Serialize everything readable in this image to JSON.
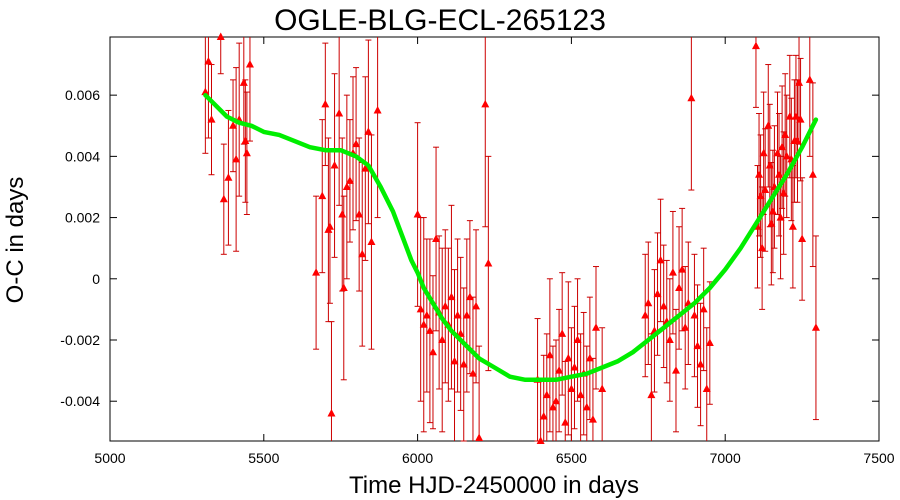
{
  "chart_data": {
    "type": "scatter",
    "title": "OGLE-BLG-ECL-265123",
    "xlabel": "Time HJD-2450000 in days",
    "ylabel": "O-C in days",
    "xlim": [
      5000,
      7500
    ],
    "ylim": [
      -0.0053,
      0.0079
    ],
    "x_ticks": [
      5000,
      5500,
      6000,
      6500,
      7000,
      7500
    ],
    "x_tick_labels": [
      "5000",
      "5500",
      "6000",
      "6500",
      "7000",
      "7500"
    ],
    "y_ticks": [
      -0.004,
      -0.002,
      0,
      0.002,
      0.004,
      0.006
    ],
    "y_tick_labels": [
      "-0.004",
      "-0.002",
      "0",
      "0.002",
      "0.004",
      "0.006"
    ],
    "grid": false,
    "legend": "none",
    "colors": {
      "points": "#ff0000",
      "errorbars": "#cc0000",
      "fit": "#00ee00",
      "axes": "#000000"
    },
    "series": [
      {
        "type": "scatter-errorbar",
        "points": [
          {
            "x": 5310,
            "y": 0.0061,
            "err": 0.002
          },
          {
            "x": 5320,
            "y": 0.0071,
            "err": 0.0025
          },
          {
            "x": 5330,
            "y": 0.0052,
            "err": 0.0018
          },
          {
            "x": 5360,
            "y": 0.0079,
            "err": 0.0012
          },
          {
            "x": 5370,
            "y": 0.0026,
            "err": 0.0018
          },
          {
            "x": 5385,
            "y": 0.0033,
            "err": 0.0022
          },
          {
            "x": 5400,
            "y": 0.005,
            "err": 0.0015
          },
          {
            "x": 5410,
            "y": 0.0039,
            "err": 0.003
          },
          {
            "x": 5420,
            "y": 0.0052,
            "err": 0.0025
          },
          {
            "x": 5435,
            "y": 0.0064,
            "err": 0.002
          },
          {
            "x": 5440,
            "y": 0.0045,
            "err": 0.002
          },
          {
            "x": 5445,
            "y": 0.0041,
            "err": 0.002
          },
          {
            "x": 5455,
            "y": 0.007,
            "err": 0.0025
          },
          {
            "x": 5670,
            "y": 0.0002,
            "err": 0.0025
          },
          {
            "x": 5690,
            "y": 0.0027,
            "err": 0.0025
          },
          {
            "x": 5700,
            "y": 0.0057,
            "err": 0.002
          },
          {
            "x": 5710,
            "y": 0.0016,
            "err": 0.003
          },
          {
            "x": 5715,
            "y": 0.0017,
            "err": 0.0025
          },
          {
            "x": 5720,
            "y": -0.0044,
            "err": 0.003
          },
          {
            "x": 5730,
            "y": 0.0037,
            "err": 0.003
          },
          {
            "x": 5745,
            "y": 0.0054,
            "err": 0.003
          },
          {
            "x": 5755,
            "y": 0.0021,
            "err": 0.0025
          },
          {
            "x": 5760,
            "y": -0.0003,
            "err": 0.003
          },
          {
            "x": 5770,
            "y": 0.003,
            "err": 0.003
          },
          {
            "x": 5780,
            "y": 0.0032,
            "err": 0.002
          },
          {
            "x": 5790,
            "y": 0.0041,
            "err": 0.0025
          },
          {
            "x": 5800,
            "y": 0.0044,
            "err": 0.0025
          },
          {
            "x": 5810,
            "y": 0.0021,
            "err": 0.0025
          },
          {
            "x": 5820,
            "y": 0.0008,
            "err": 0.003
          },
          {
            "x": 5830,
            "y": 0.0036,
            "err": 0.003
          },
          {
            "x": 5840,
            "y": 0.0048,
            "err": 0.003
          },
          {
            "x": 5850,
            "y": 0.0012,
            "err": 0.0035
          },
          {
            "x": 5870,
            "y": 0.0055,
            "err": 0.0035
          },
          {
            "x": 6000,
            "y": 0.0021,
            "err": 0.003
          },
          {
            "x": 6010,
            "y": -0.001,
            "err": 0.003
          },
          {
            "x": 6020,
            "y": -0.0015,
            "err": 0.0035
          },
          {
            "x": 6030,
            "y": -0.0012,
            "err": 0.0025
          },
          {
            "x": 6040,
            "y": -0.0017,
            "err": 0.003
          },
          {
            "x": 6050,
            "y": -0.0024,
            "err": 0.0025
          },
          {
            "x": 6060,
            "y": 0.0013,
            "err": 0.003
          },
          {
            "x": 6070,
            "y": -0.0011,
            "err": 0.0025
          },
          {
            "x": 6080,
            "y": -0.002,
            "err": 0.003
          },
          {
            "x": 6090,
            "y": -0.0009,
            "err": 0.0025
          },
          {
            "x": 6100,
            "y": -0.0015,
            "err": 0.0025
          },
          {
            "x": 6110,
            "y": -0.0006,
            "err": 0.003
          },
          {
            "x": 6120,
            "y": -0.0027,
            "err": 0.003
          },
          {
            "x": 6130,
            "y": -0.0012,
            "err": 0.0025
          },
          {
            "x": 6140,
            "y": -0.0018,
            "err": 0.0025
          },
          {
            "x": 6150,
            "y": -0.0028,
            "err": 0.0025
          },
          {
            "x": 6160,
            "y": -0.0012,
            "err": 0.0025
          },
          {
            "x": 6170,
            "y": -0.0006,
            "err": 0.0025
          },
          {
            "x": 6180,
            "y": -0.0031,
            "err": 0.0025
          },
          {
            "x": 6190,
            "y": -0.0009,
            "err": 0.0025
          },
          {
            "x": 6200,
            "y": -0.0052,
            "err": 0.003
          },
          {
            "x": 6220,
            "y": 0.0057,
            "err": 0.004
          },
          {
            "x": 6230,
            "y": 0.0005,
            "err": 0.0035
          },
          {
            "x": 6390,
            "y": -0.0033,
            "err": 0.002
          },
          {
            "x": 6400,
            "y": -0.0053,
            "err": 0.002
          },
          {
            "x": 6410,
            "y": -0.0045,
            "err": 0.002
          },
          {
            "x": 6420,
            "y": -0.0038,
            "err": 0.002
          },
          {
            "x": 6430,
            "y": -0.0025,
            "err": 0.0025
          },
          {
            "x": 6440,
            "y": -0.0042,
            "err": 0.002
          },
          {
            "x": 6450,
            "y": -0.004,
            "err": 0.002
          },
          {
            "x": 6460,
            "y": -0.003,
            "err": 0.002
          },
          {
            "x": 6470,
            "y": -0.0018,
            "err": 0.002
          },
          {
            "x": 6480,
            "y": -0.0047,
            "err": 0.002
          },
          {
            "x": 6490,
            "y": -0.0026,
            "err": 0.0025
          },
          {
            "x": 6500,
            "y": -0.0036,
            "err": 0.002
          },
          {
            "x": 6510,
            "y": -0.0029,
            "err": 0.002
          },
          {
            "x": 6520,
            "y": -0.002,
            "err": 0.002
          },
          {
            "x": 6530,
            "y": -0.0038,
            "err": 0.002
          },
          {
            "x": 6540,
            "y": -0.0031,
            "err": 0.002
          },
          {
            "x": 6550,
            "y": -0.0042,
            "err": 0.002
          },
          {
            "x": 6560,
            "y": -0.0026,
            "err": 0.002
          },
          {
            "x": 6570,
            "y": -0.0046,
            "err": 0.002
          },
          {
            "x": 6580,
            "y": -0.0016,
            "err": 0.002
          },
          {
            "x": 6600,
            "y": -0.0036,
            "err": 0.002
          },
          {
            "x": 6740,
            "y": -0.0012,
            "err": 0.002
          },
          {
            "x": 6750,
            "y": -0.0008,
            "err": 0.002
          },
          {
            "x": 6760,
            "y": -0.0038,
            "err": 0.002
          },
          {
            "x": 6770,
            "y": -0.0017,
            "err": 0.002
          },
          {
            "x": 6780,
            "y": -0.0005,
            "err": 0.002
          },
          {
            "x": 6790,
            "y": 0.0006,
            "err": 0.002
          },
          {
            "x": 6800,
            "y": -0.0009,
            "err": 0.002
          },
          {
            "x": 6810,
            "y": -0.0014,
            "err": 0.002
          },
          {
            "x": 6820,
            "y": -0.002,
            "err": 0.002
          },
          {
            "x": 6830,
            "y": 0.0002,
            "err": 0.002
          },
          {
            "x": 6840,
            "y": -0.003,
            "err": 0.002
          },
          {
            "x": 6850,
            "y": -0.0003,
            "err": 0.002
          },
          {
            "x": 6860,
            "y": 0.0003,
            "err": 0.002
          },
          {
            "x": 6870,
            "y": -0.0016,
            "err": 0.002
          },
          {
            "x": 6880,
            "y": -0.0008,
            "err": 0.002
          },
          {
            "x": 6890,
            "y": 0.0059,
            "err": 0.003
          },
          {
            "x": 6900,
            "y": -0.0012,
            "err": 0.002
          },
          {
            "x": 6910,
            "y": -0.0022,
            "err": 0.002
          },
          {
            "x": 6920,
            "y": -0.0028,
            "err": 0.002
          },
          {
            "x": 6930,
            "y": -0.001,
            "err": 0.002
          },
          {
            "x": 6940,
            "y": -0.0036,
            "err": 0.002
          },
          {
            "x": 6950,
            "y": -0.0021,
            "err": 0.002
          },
          {
            "x": 7100,
            "y": 0.0076,
            "err": 0.002
          },
          {
            "x": 7105,
            "y": 0.0017,
            "err": 0.002
          },
          {
            "x": 7110,
            "y": 0.0034,
            "err": 0.002
          },
          {
            "x": 7115,
            "y": 0.0027,
            "err": 0.002
          },
          {
            "x": 7120,
            "y": 0.001,
            "err": 0.002
          },
          {
            "x": 7125,
            "y": 0.0041,
            "err": 0.002
          },
          {
            "x": 7130,
            "y": 0.0029,
            "err": 0.002
          },
          {
            "x": 7140,
            "y": 0.005,
            "err": 0.002
          },
          {
            "x": 7145,
            "y": 0.0037,
            "err": 0.002
          },
          {
            "x": 7150,
            "y": 0.0018,
            "err": 0.002
          },
          {
            "x": 7155,
            "y": 0.0022,
            "err": 0.002
          },
          {
            "x": 7160,
            "y": 0.003,
            "err": 0.002
          },
          {
            "x": 7170,
            "y": 0.0041,
            "err": 0.002
          },
          {
            "x": 7175,
            "y": 0.0034,
            "err": 0.002
          },
          {
            "x": 7180,
            "y": 0.002,
            "err": 0.002
          },
          {
            "x": 7185,
            "y": 0.0043,
            "err": 0.002
          },
          {
            "x": 7190,
            "y": 0.0028,
            "err": 0.002
          },
          {
            "x": 7195,
            "y": 0.0047,
            "err": 0.002
          },
          {
            "x": 7200,
            "y": 0.004,
            "err": 0.002
          },
          {
            "x": 7210,
            "y": 0.0053,
            "err": 0.002
          },
          {
            "x": 7215,
            "y": 0.0039,
            "err": 0.002
          },
          {
            "x": 7220,
            "y": 0.0017,
            "err": 0.002
          },
          {
            "x": 7225,
            "y": 0.0045,
            "err": 0.002
          },
          {
            "x": 7230,
            "y": 0.0053,
            "err": 0.002
          },
          {
            "x": 7235,
            "y": 0.0045,
            "err": 0.002
          },
          {
            "x": 7240,
            "y": 0.0064,
            "err": 0.002
          },
          {
            "x": 7245,
            "y": 0.0052,
            "err": 0.002
          },
          {
            "x": 7250,
            "y": 0.0013,
            "err": 0.002
          },
          {
            "x": 7275,
            "y": 0.0065,
            "err": 0.0025
          },
          {
            "x": 7285,
            "y": 0.0034,
            "err": 0.003
          },
          {
            "x": 7295,
            "y": -0.0016,
            "err": 0.003
          }
        ]
      },
      {
        "type": "line",
        "x": [
          5310,
          5340,
          5380,
          5420,
          5460,
          5500,
          5550,
          5600,
          5650,
          5700,
          5750,
          5800,
          5840,
          5880,
          5920,
          5950,
          5980,
          6000,
          6020,
          6050,
          6080,
          6110,
          6150,
          6200,
          6250,
          6300,
          6350,
          6400,
          6450,
          6500,
          6550,
          6600,
          6650,
          6700,
          6750,
          6800,
          6850,
          6900,
          6950,
          7000,
          7050,
          7100,
          7150,
          7200,
          7250,
          7295
        ],
        "y": [
          0.006,
          0.0057,
          0.0053,
          0.0051,
          0.005,
          0.0048,
          0.0047,
          0.0045,
          0.0043,
          0.0042,
          0.0042,
          0.004,
          0.0037,
          0.003,
          0.0022,
          0.0014,
          0.0006,
          0.0002,
          -0.0003,
          -0.0008,
          -0.0013,
          -0.0017,
          -0.0021,
          -0.0026,
          -0.0029,
          -0.0032,
          -0.0033,
          -0.0033,
          -0.0033,
          -0.0032,
          -0.0031,
          -0.0029,
          -0.0027,
          -0.0024,
          -0.002,
          -0.0016,
          -0.0012,
          -0.0008,
          -0.0003,
          0.0003,
          0.001,
          0.0018,
          0.0026,
          0.0034,
          0.0043,
          0.0052
        ]
      }
    ]
  }
}
